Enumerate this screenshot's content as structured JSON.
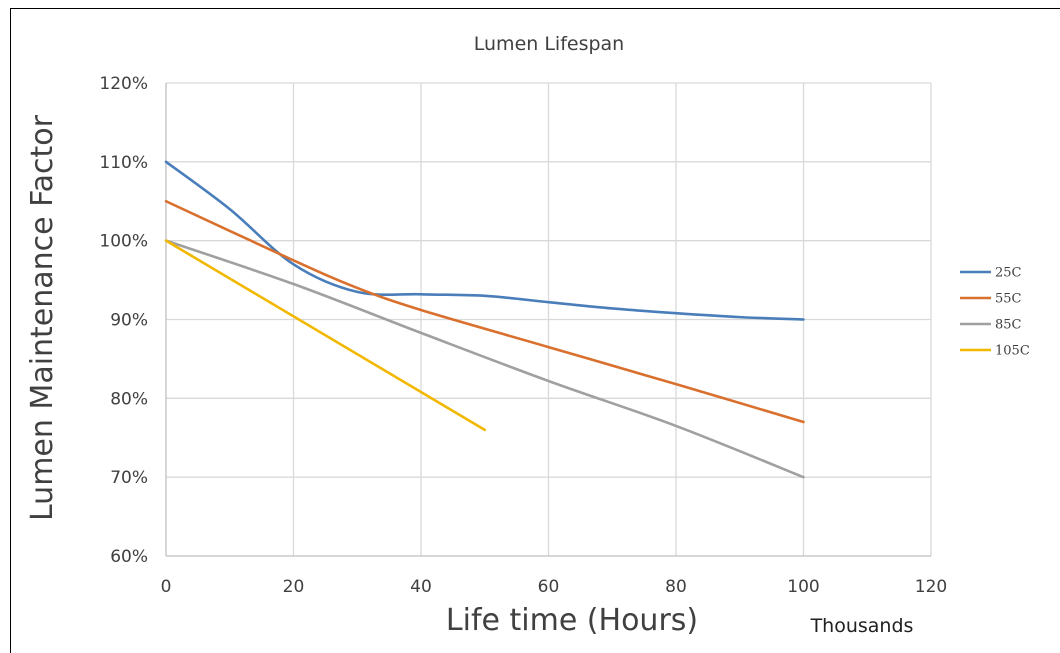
{
  "chart_data": {
    "type": "line",
    "title": "Lumen Lifespan",
    "xlabel": "Life time (Hours)",
    "ylabel": "Lumen Maintenance Factor",
    "x_units_label": "Thousands",
    "xlim": [
      0,
      120
    ],
    "ylim": [
      0.6,
      1.2
    ],
    "x_ticks": [
      {
        "value": 0,
        "label": "0"
      },
      {
        "value": 20,
        "label": "20"
      },
      {
        "value": 40,
        "label": "40"
      },
      {
        "value": 60,
        "label": "60"
      },
      {
        "value": 80,
        "label": "80"
      },
      {
        "value": 100,
        "label": "100"
      },
      {
        "value": 120,
        "label": "120"
      }
    ],
    "y_ticks": [
      {
        "value": 0.6,
        "label": "60%"
      },
      {
        "value": 0.7,
        "label": "70%"
      },
      {
        "value": 0.8,
        "label": "80%"
      },
      {
        "value": 0.9,
        "label": "90%"
      },
      {
        "value": 1.0,
        "label": "100%"
      },
      {
        "value": 1.1,
        "label": "110%"
      },
      {
        "value": 1.2,
        "label": "120%"
      }
    ],
    "grid": true,
    "legend_position": "right",
    "series": [
      {
        "name": "25C",
        "color": "#4a7ebb",
        "x": [
          0,
          10,
          20,
          30,
          40,
          50,
          60,
          70,
          80,
          90,
          100
        ],
        "y": [
          1.1,
          1.04,
          0.97,
          0.935,
          0.932,
          0.93,
          0.922,
          0.914,
          0.908,
          0.903,
          0.9
        ]
      },
      {
        "name": "55C",
        "color": "#d9702e",
        "x": [
          0,
          20,
          30,
          40,
          60,
          80,
          100
        ],
        "y": [
          1.05,
          0.975,
          0.94,
          0.912,
          0.865,
          0.818,
          0.77
        ]
      },
      {
        "name": "85C",
        "color": "#a0a0a0",
        "x": [
          0,
          20,
          40,
          60,
          80,
          100
        ],
        "y": [
          1.0,
          0.945,
          0.883,
          0.822,
          0.765,
          0.7
        ]
      },
      {
        "name": "105C",
        "color": "#f2b800",
        "x": [
          0,
          50
        ],
        "y": [
          1.0,
          0.76
        ]
      }
    ]
  }
}
